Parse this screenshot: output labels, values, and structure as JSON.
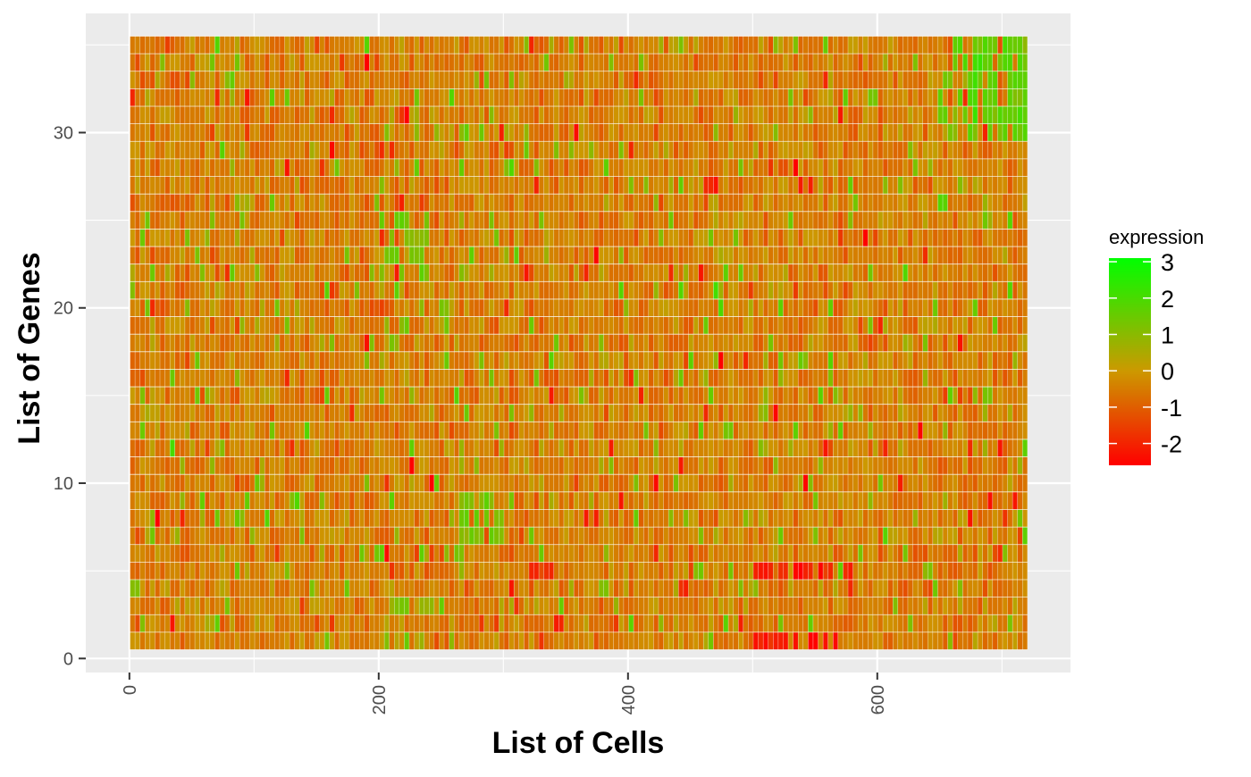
{
  "chart_data": {
    "type": "heatmap",
    "xlabel": "List of Cells",
    "ylabel": "List of Genes",
    "x_range": [
      1,
      720
    ],
    "y_range": [
      1,
      35
    ],
    "xlim": [
      -35,
      755
    ],
    "ylim": [
      -0.8,
      36.8
    ],
    "x_ticks": [
      0,
      200,
      400,
      600
    ],
    "y_ticks": [
      0,
      10,
      20,
      30
    ],
    "grid": true,
    "legend": {
      "title": "expression",
      "position": "right",
      "range": [
        -2.6,
        3.1
      ],
      "breaks": [
        3,
        2,
        1,
        0,
        -1,
        -2
      ],
      "colors": {
        "low": "#ff0000",
        "mid": "#cc9900",
        "high": "#00ff00"
      }
    },
    "highlights": [
      {
        "genes": [
          1
        ],
        "cells": [
          500,
          570
        ],
        "value": -2.2
      },
      {
        "genes": [
          5
        ],
        "cells": [
          500,
          580
        ],
        "value": -2.0
      },
      {
        "genes": [
          5
        ],
        "cells": [
          320,
          340
        ],
        "value": -1.6
      },
      {
        "genes": [
          30,
          31,
          32,
          33,
          34,
          35
        ],
        "cells": [
          650,
          720
        ],
        "value": 1.6
      },
      {
        "genes": [
          22,
          23,
          24,
          25
        ],
        "cells": [
          200,
          240
        ],
        "value": 1.2
      },
      {
        "genes": [
          7,
          8,
          9
        ],
        "cells": [
          260,
          300
        ],
        "value": 1.2
      },
      {
        "genes": [
          3
        ],
        "cells": [
          200,
          260
        ],
        "value": 1.0
      }
    ]
  }
}
